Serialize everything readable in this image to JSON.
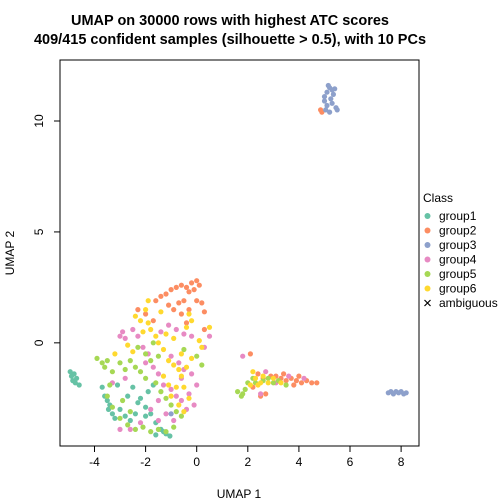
{
  "chart_data": {
    "type": "scatter",
    "title_line1": "UMAP on 30000 rows with highest ATC scores",
    "title_line2": "409/415 confident samples (silhouette > 0.5), with 10 PCs",
    "xlabel": "UMAP 1",
    "ylabel": "UMAP 2",
    "xlim": [
      -5.35,
      8.7
    ],
    "ylim": [
      -4.65,
      12.75
    ],
    "xticks": [
      -4,
      -2,
      0,
      2,
      4,
      6,
      8
    ],
    "yticks": [
      0,
      5,
      10
    ],
    "grid": false,
    "legend": {
      "title": "Class",
      "position": "right",
      "entries": [
        {
          "label": "group1",
          "color": "#66C2A5",
          "marker": "dot"
        },
        {
          "label": "group2",
          "color": "#FC8D62",
          "marker": "dot"
        },
        {
          "label": "group3",
          "color": "#8DA0CB",
          "marker": "dot"
        },
        {
          "label": "group4",
          "color": "#E78AC3",
          "marker": "dot"
        },
        {
          "label": "group5",
          "color": "#A6D854",
          "marker": "dot"
        },
        {
          "label": "group6",
          "color": "#FFD92F",
          "marker": "dot"
        },
        {
          "label": "ambiguous",
          "color": "#000000",
          "marker": "cross"
        }
      ]
    },
    "series": [
      {
        "name": "group1",
        "color": "#66C2A5",
        "points": [
          [
            -4.95,
            -1.3
          ],
          [
            -4.9,
            -1.5
          ],
          [
            -4.85,
            -1.7
          ],
          [
            -4.75,
            -1.8
          ],
          [
            -4.8,
            -1.4
          ],
          [
            -4.7,
            -1.6
          ],
          [
            -4.6,
            -1.9
          ],
          [
            -3.7,
            -2.0
          ],
          [
            -3.6,
            -2.4
          ],
          [
            -3.5,
            -2.6
          ],
          [
            -3.4,
            -2.8
          ],
          [
            -3.45,
            -3.0
          ],
          [
            -3.3,
            -3.2
          ],
          [
            -3.2,
            -3.4
          ],
          [
            -3.0,
            -3.0
          ],
          [
            -2.8,
            -3.3
          ],
          [
            -2.6,
            -3.5
          ],
          [
            -2.4,
            -3.2
          ],
          [
            -2.3,
            -2.7
          ],
          [
            -2.2,
            -2.5
          ],
          [
            -2.0,
            -2.9
          ],
          [
            -1.8,
            -3.2
          ],
          [
            -1.6,
            -3.6
          ],
          [
            -1.4,
            -3.9
          ],
          [
            -1.2,
            -4.1
          ],
          [
            -1.05,
            -4.2
          ],
          [
            -1.3,
            -4.0
          ],
          [
            -1.6,
            -4.15
          ],
          [
            -2.0,
            -3.3
          ],
          [
            -1.9,
            -2.2
          ],
          [
            -1.7,
            -1.9
          ],
          [
            -2.7,
            -2.4
          ],
          [
            -3.1,
            -1.9
          ],
          [
            -2.5,
            -2.0
          ]
        ]
      },
      {
        "name": "group2",
        "color": "#FC8D62",
        "points": [
          [
            -1.6,
            1.9
          ],
          [
            -1.4,
            2.1
          ],
          [
            -1.2,
            2.2
          ],
          [
            -1.0,
            2.4
          ],
          [
            -0.8,
            2.5
          ],
          [
            -0.6,
            2.6
          ],
          [
            -0.4,
            2.5
          ],
          [
            -0.2,
            2.7
          ],
          [
            0.0,
            2.8
          ],
          [
            -0.1,
            2.4
          ],
          [
            0.1,
            2.6
          ],
          [
            -0.3,
            2.3
          ],
          [
            -0.5,
            1.9
          ],
          [
            -0.7,
            1.8
          ],
          [
            -1.1,
            1.7
          ],
          [
            -0.9,
            1.5
          ],
          [
            -0.6,
            1.3
          ],
          [
            -0.3,
            1.5
          ],
          [
            0.0,
            1.9
          ],
          [
            0.3,
            1.4
          ],
          [
            0.2,
            1.8
          ],
          [
            -2.3,
            1.5
          ],
          [
            -2.0,
            1.3
          ],
          [
            -1.7,
            1.0
          ],
          [
            -0.4,
            0.9
          ],
          [
            0.3,
            0.6
          ],
          [
            2.1,
            -0.5
          ],
          [
            2.4,
            -1.4
          ],
          [
            2.6,
            -1.6
          ],
          [
            2.9,
            -1.5
          ],
          [
            3.1,
            -1.5
          ],
          [
            3.3,
            -1.6
          ],
          [
            3.5,
            -1.7
          ],
          [
            3.7,
            -1.6
          ],
          [
            3.9,
            -1.7
          ],
          [
            4.1,
            -1.8
          ],
          [
            4.3,
            -1.7
          ],
          [
            4.5,
            -1.8
          ],
          [
            4.7,
            -1.8
          ],
          [
            3.4,
            -1.4
          ],
          [
            3.8,
            -1.9
          ],
          [
            4.0,
            -1.5
          ],
          [
            2.7,
            -2.3
          ],
          [
            2.5,
            -2.4
          ],
          [
            2.2,
            -2.0
          ],
          [
            4.9,
            10.4
          ],
          [
            4.85,
            10.5
          ]
        ]
      },
      {
        "name": "group3",
        "color": "#8DA0CB",
        "points": [
          [
            5.0,
            11.1
          ],
          [
            5.1,
            11.3
          ],
          [
            5.2,
            11.5
          ],
          [
            5.15,
            11.6
          ],
          [
            5.3,
            11.4
          ],
          [
            5.35,
            11.2
          ],
          [
            5.25,
            11.0
          ],
          [
            5.0,
            10.9
          ],
          [
            5.3,
            10.8
          ],
          [
            5.45,
            10.6
          ],
          [
            5.5,
            10.5
          ],
          [
            5.2,
            10.4
          ],
          [
            5.05,
            10.5
          ],
          [
            5.1,
            10.7
          ],
          [
            5.4,
            11.45
          ],
          [
            7.5,
            -2.25
          ],
          [
            7.6,
            -2.2
          ],
          [
            7.7,
            -2.3
          ],
          [
            7.8,
            -2.2
          ],
          [
            7.9,
            -2.25
          ],
          [
            8.0,
            -2.2
          ],
          [
            8.1,
            -2.3
          ],
          [
            8.2,
            -2.25
          ],
          [
            -1.0,
            -3.2
          ]
        ]
      },
      {
        "name": "group4",
        "color": "#E78AC3",
        "points": [
          [
            -3.0,
            0.3
          ],
          [
            -2.9,
            0.5
          ],
          [
            -2.8,
            0.2
          ],
          [
            -2.5,
            0.6
          ],
          [
            -2.3,
            0.3
          ],
          [
            -2.1,
            -0.2
          ],
          [
            -1.9,
            -0.5
          ],
          [
            -2.0,
            -0.9
          ],
          [
            -1.7,
            -1.1
          ],
          [
            -1.5,
            -1.4
          ],
          [
            -1.3,
            -1.9
          ],
          [
            -1.0,
            -2.1
          ],
          [
            -0.8,
            -2.4
          ],
          [
            -0.6,
            -2.6
          ],
          [
            -0.3,
            -2.3
          ],
          [
            0.0,
            -1.9
          ],
          [
            -0.2,
            -1.4
          ],
          [
            -0.5,
            -1.2
          ],
          [
            -0.7,
            -0.9
          ],
          [
            -1.0,
            -0.6
          ],
          [
            -1.4,
            0.5
          ],
          [
            -1.1,
            0.8
          ],
          [
            -0.8,
            0.6
          ],
          [
            -0.5,
            0.4
          ],
          [
            -0.2,
            0.3
          ],
          [
            0.3,
            -0.2
          ],
          [
            0.5,
            0.3
          ],
          [
            -1.5,
            -2.6
          ],
          [
            -1.8,
            -3.0
          ],
          [
            -1.5,
            -3.5
          ],
          [
            -1.2,
            -3.2
          ],
          [
            -2.2,
            -3.6
          ],
          [
            -2.6,
            -3.9
          ],
          [
            -3.0,
            -3.9
          ],
          [
            -3.3,
            -1.8
          ],
          [
            -2.8,
            -1.6
          ],
          [
            -0.9,
            -3.5
          ],
          [
            -0.4,
            -3.0
          ],
          [
            -0.1,
            -2.8
          ],
          [
            -0.6,
            -1.6
          ],
          [
            2.7,
            -1.3
          ],
          [
            3.1,
            -1.8
          ],
          [
            3.6,
            -1.5
          ],
          [
            4.2,
            -1.6
          ],
          [
            1.8,
            -0.6
          ],
          [
            2.5,
            -2.3
          ]
        ]
      },
      {
        "name": "group5",
        "color": "#A6D854",
        "points": [
          [
            -3.9,
            -0.7
          ],
          [
            -3.7,
            -0.9
          ],
          [
            -3.5,
            -0.8
          ],
          [
            -3.6,
            -1.1
          ],
          [
            -3.3,
            -1.3
          ],
          [
            -3.0,
            -0.9
          ],
          [
            -2.8,
            -1.2
          ],
          [
            -2.6,
            -0.8
          ],
          [
            -2.4,
            -1.1
          ],
          [
            -2.2,
            -1.3
          ],
          [
            -2.0,
            -1.6
          ],
          [
            -1.8,
            -0.8
          ],
          [
            -1.5,
            -0.6
          ],
          [
            -1.6,
            -1.8
          ],
          [
            -1.4,
            -2.2
          ],
          [
            -1.2,
            -2.5
          ],
          [
            -1.0,
            -2.8
          ],
          [
            -0.8,
            -3.1
          ],
          [
            -0.6,
            -3.3
          ],
          [
            -0.9,
            -3.8
          ],
          [
            -1.2,
            -4.0
          ],
          [
            -1.5,
            -3.9
          ],
          [
            -1.8,
            -4.0
          ],
          [
            -2.1,
            -3.8
          ],
          [
            -2.4,
            -3.9
          ],
          [
            -2.7,
            -3.7
          ],
          [
            -3.0,
            -3.4
          ],
          [
            -3.3,
            -2.9
          ],
          [
            -3.5,
            -2.4
          ],
          [
            -3.4,
            -1.9
          ],
          [
            -2.3,
            -0.2
          ],
          [
            -2.0,
            -0.5
          ],
          [
            -1.7,
            0.0
          ],
          [
            -0.5,
            -0.3
          ],
          [
            0.0,
            -0.6
          ],
          [
            0.2,
            -1.0
          ],
          [
            -2.6,
            -3.1
          ],
          [
            -2.9,
            -2.6
          ],
          [
            1.6,
            -2.2
          ],
          [
            1.75,
            -2.4
          ],
          [
            1.9,
            -2.1
          ],
          [
            1.8,
            -2.3
          ],
          [
            2.0,
            -1.8
          ],
          [
            2.2,
            -1.6
          ],
          [
            2.3,
            -1.8
          ],
          [
            2.6,
            -1.7
          ],
          [
            2.8,
            -1.6
          ],
          [
            3.0,
            -1.8
          ],
          [
            3.2,
            -1.7
          ],
          [
            3.5,
            -1.9
          ]
        ]
      },
      {
        "name": "group6",
        "color": "#FFD92F",
        "points": [
          [
            -2.4,
            1.2
          ],
          [
            -2.2,
            1.0
          ],
          [
            -2.0,
            1.5
          ],
          [
            -1.9,
            0.9
          ],
          [
            -1.8,
            0.6
          ],
          [
            -1.6,
            0.3
          ],
          [
            -1.5,
            0.0
          ],
          [
            -1.3,
            -0.3
          ],
          [
            -1.1,
            -0.8
          ],
          [
            -0.9,
            -1.0
          ],
          [
            -0.7,
            -1.2
          ],
          [
            -0.6,
            -1.5
          ],
          [
            -0.4,
            -1.1
          ],
          [
            -0.2,
            -0.7
          ],
          [
            -0.6,
            -0.5
          ],
          [
            -0.9,
            0.2
          ],
          [
            -1.2,
            0.4
          ],
          [
            -0.4,
            0.7
          ],
          [
            0.1,
            0.1
          ],
          [
            -0.2,
            1.0
          ],
          [
            -1.4,
            1.4
          ],
          [
            -1.9,
            1.9
          ],
          [
            -0.5,
            -2.0
          ],
          [
            -0.3,
            -2.5
          ],
          [
            -0.7,
            -2.8
          ],
          [
            -1.0,
            -2.4
          ],
          [
            -1.3,
            -1.5
          ],
          [
            -0.5,
            -3.1
          ],
          [
            -0.8,
            -2.0
          ],
          [
            -2.5,
            -0.4
          ],
          [
            -2.7,
            -0.1
          ],
          [
            -3.2,
            -0.5
          ],
          [
            -2.1,
            0.5
          ],
          [
            -0.3,
            1.3
          ],
          [
            0.5,
            0.7
          ],
          [
            0.2,
            -0.2
          ],
          [
            -1.1,
            -1.9
          ],
          [
            2.2,
            -1.3
          ],
          [
            2.3,
            -1.6
          ],
          [
            2.5,
            -1.8
          ],
          [
            2.6,
            -1.5
          ],
          [
            2.8,
            -1.8
          ],
          [
            3.0,
            -1.6
          ],
          [
            2.4,
            -1.9
          ],
          [
            3.3,
            -1.8
          ],
          [
            2.1,
            -1.9
          ]
        ]
      }
    ]
  }
}
